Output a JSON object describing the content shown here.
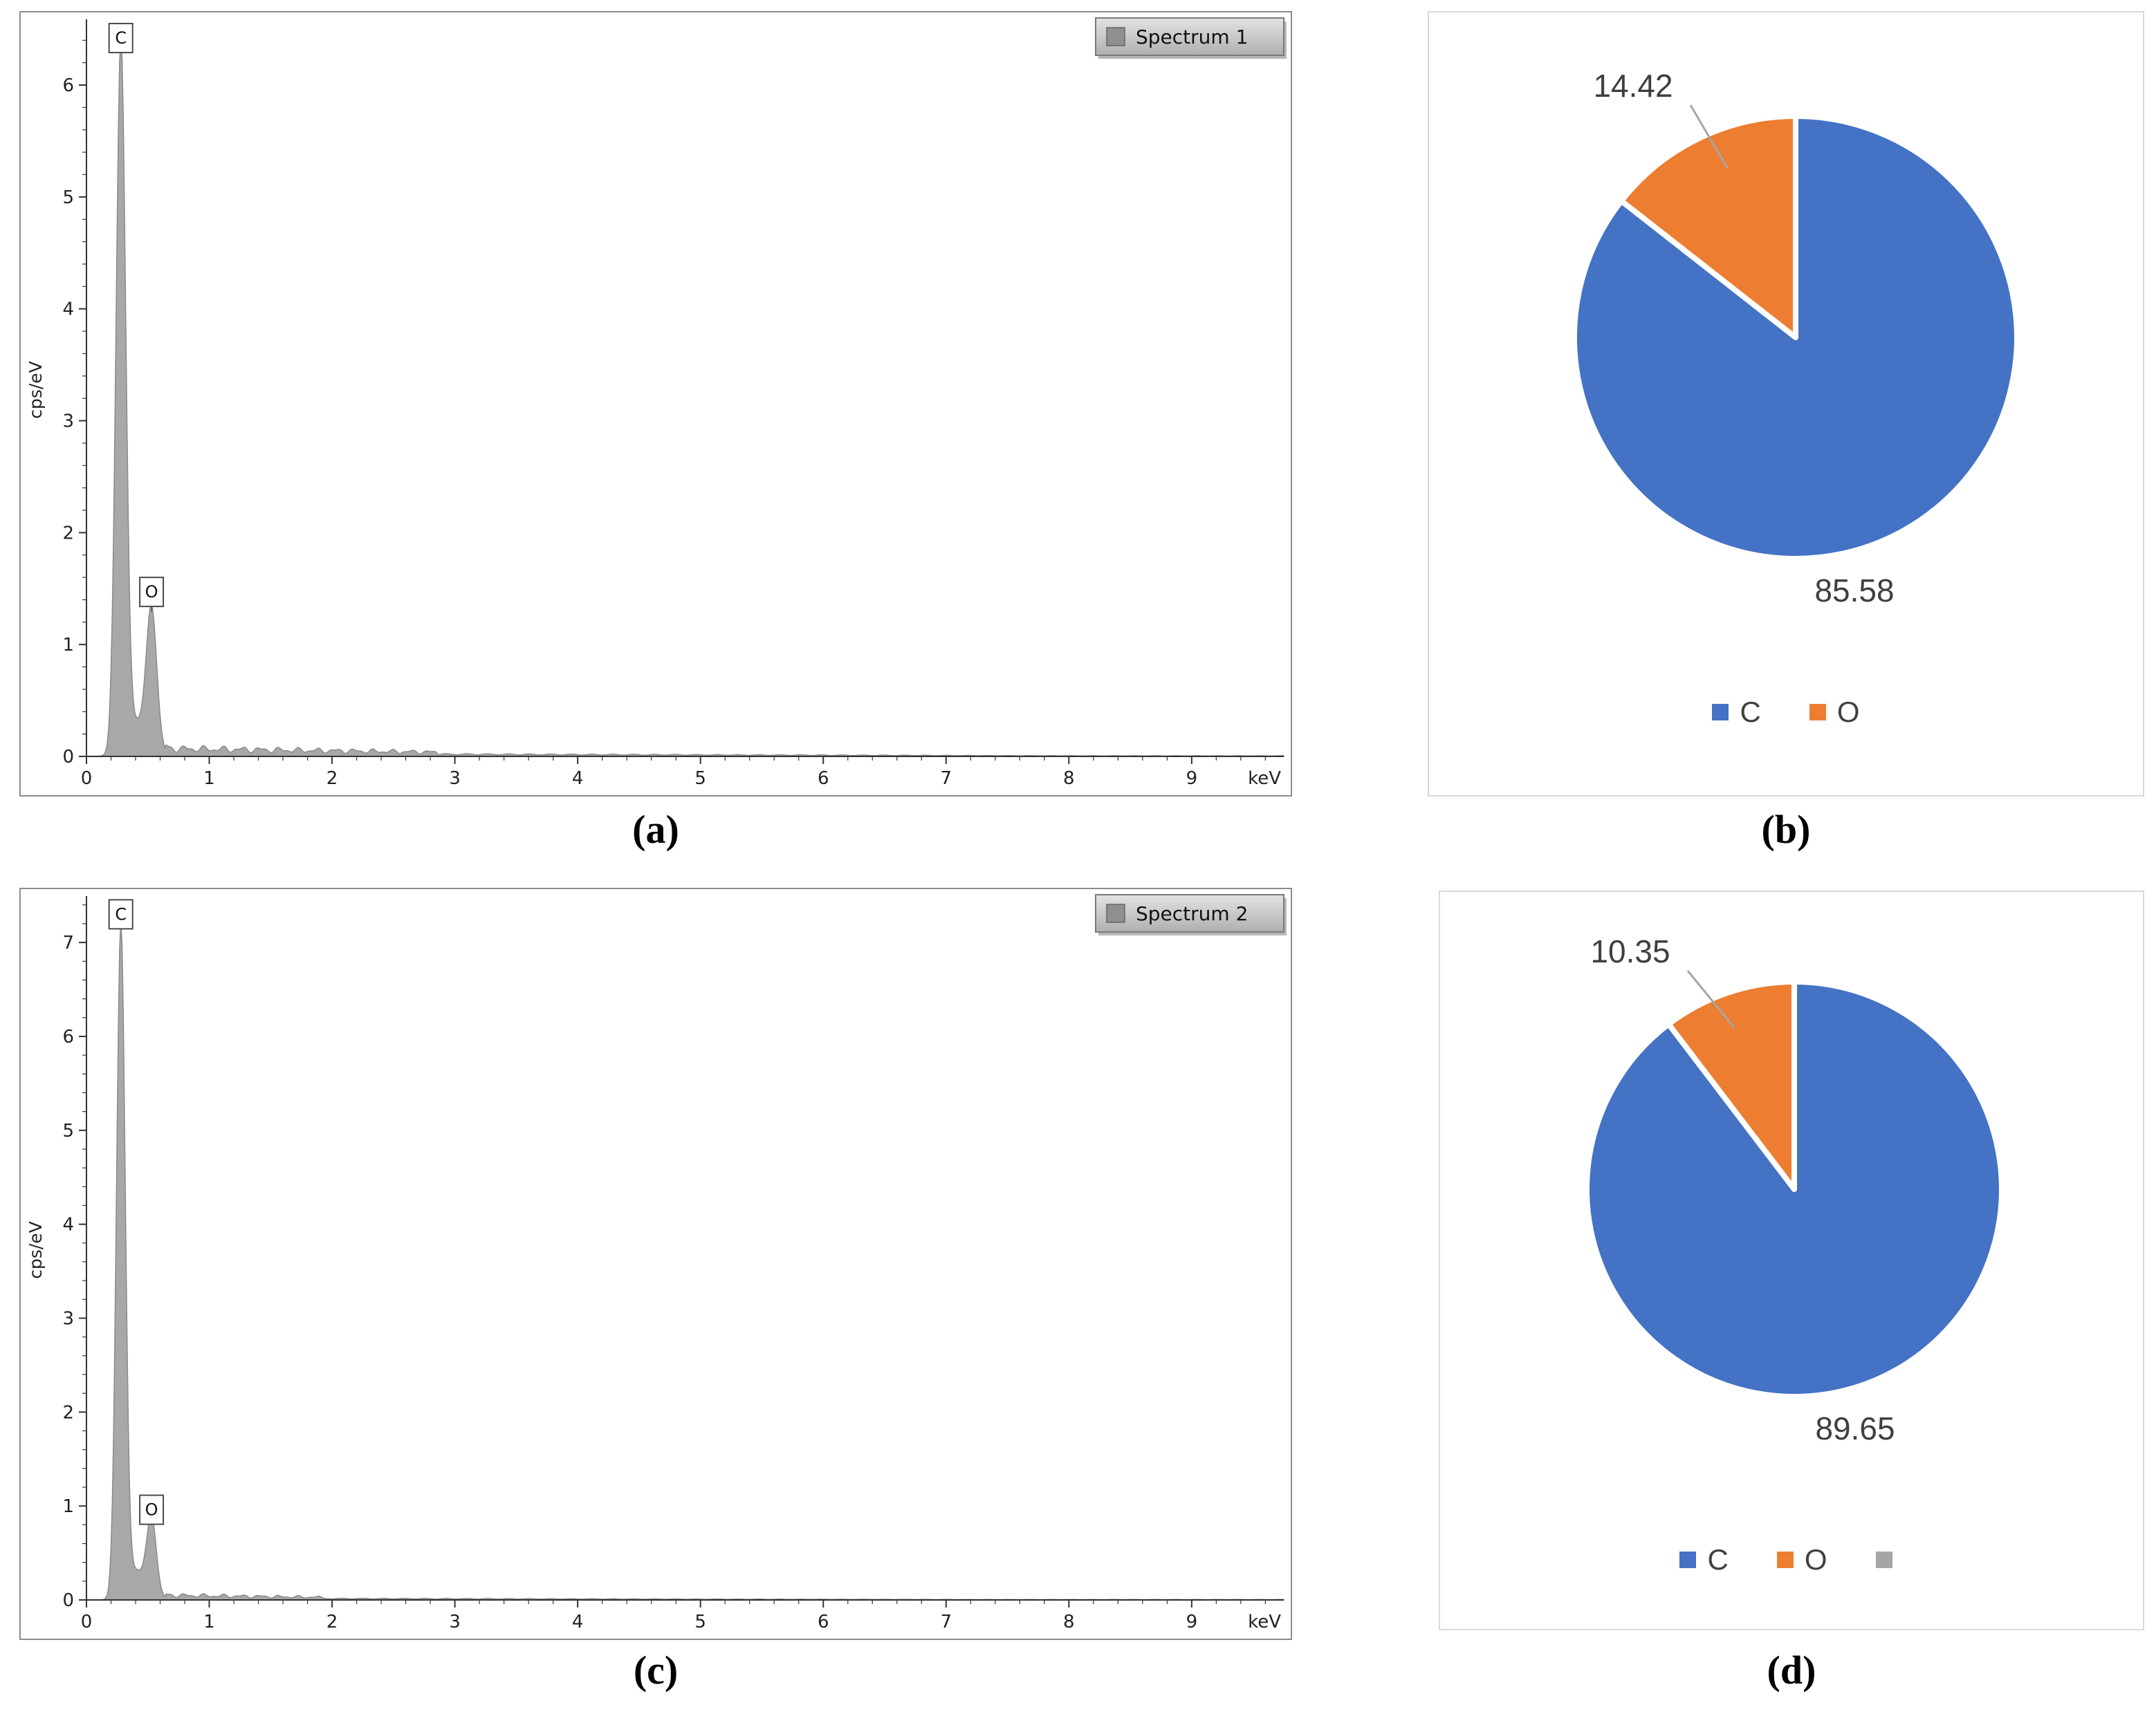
{
  "figure": {
    "panel_labels": {
      "a": "(a)",
      "b": "(b)",
      "c": "(c)",
      "d": "(d)"
    }
  },
  "colors": {
    "blue": "#4472C4",
    "orange": "#ED7D31",
    "gray_legend": "#A5A5A5",
    "spectrum_fill": "#a8a8a8",
    "spectrum_stroke": "#8a8a8a",
    "axis": "#333333",
    "label_text": "#3f3f3f",
    "leader_line": "#a6a6a6"
  },
  "chart_data": [
    {
      "id": "spectrum1",
      "type": "area",
      "panel": "a",
      "legend": "Spectrum 1",
      "ylabel": "cps/eV",
      "x_unit_label": "keV",
      "xlim": [
        0,
        9.75
      ],
      "ylim": [
        0,
        6.55
      ],
      "xticks": [
        0,
        1,
        2,
        3,
        4,
        5,
        6,
        7,
        8,
        9
      ],
      "yticks": [
        0,
        1,
        2,
        3,
        4,
        5,
        6
      ],
      "minor_tick_step_x": 0.2,
      "minor_tick_step_y": 0.2,
      "peaks": [
        {
          "element": "C",
          "x": 0.28,
          "height": 6.35,
          "width": 0.055,
          "label_y": 6.42
        },
        {
          "element": "O",
          "x": 0.53,
          "height": 1.28,
          "width": 0.06,
          "label_y": 1.47
        }
      ],
      "bridge": {
        "x": 0.4,
        "h": 0.28,
        "w": 0.1
      },
      "background": {
        "start": 0.65,
        "end": 2.85,
        "level": 0.07,
        "tail_level": 0.02
      }
    },
    {
      "id": "spectrum2",
      "type": "area",
      "panel": "c",
      "legend": "Spectrum 2",
      "ylabel": "cps/eV",
      "x_unit_label": "keV",
      "xlim": [
        0,
        9.75
      ],
      "ylim": [
        0,
        7.45
      ],
      "xticks": [
        0,
        1,
        2,
        3,
        4,
        5,
        6,
        7,
        8,
        9
      ],
      "yticks": [
        0,
        1,
        2,
        3,
        4,
        5,
        6,
        7
      ],
      "minor_tick_step_x": 0.2,
      "minor_tick_step_y": 0.2,
      "peaks": [
        {
          "element": "C",
          "x": 0.28,
          "height": 7.15,
          "width": 0.05,
          "label_y": 7.3
        },
        {
          "element": "O",
          "x": 0.53,
          "height": 0.83,
          "width": 0.055,
          "label_y": 0.96
        }
      ],
      "bridge": {
        "x": 0.4,
        "h": 0.3,
        "w": 0.1
      },
      "background": {
        "start": 0.65,
        "end": 1.95,
        "level": 0.05,
        "tail_level": 0.015
      }
    },
    {
      "id": "pie1",
      "type": "pie",
      "panel": "b",
      "slices": [
        {
          "label": "C",
          "value": 85.58,
          "color_key": "blue"
        },
        {
          "label": "O",
          "value": 14.42,
          "color_key": "orange"
        }
      ],
      "legend": [
        {
          "label": "C",
          "color_key": "blue"
        },
        {
          "label": "O",
          "color_key": "orange"
        }
      ]
    },
    {
      "id": "pie2",
      "type": "pie",
      "panel": "d",
      "slices": [
        {
          "label": "C",
          "value": 89.65,
          "color_key": "blue"
        },
        {
          "label": "O",
          "value": 10.35,
          "color_key": "orange"
        }
      ],
      "legend": [
        {
          "label": "C",
          "color_key": "blue"
        },
        {
          "label": "O",
          "color_key": "orange"
        },
        {
          "label": "",
          "color_key": "gray_legend"
        }
      ]
    }
  ]
}
